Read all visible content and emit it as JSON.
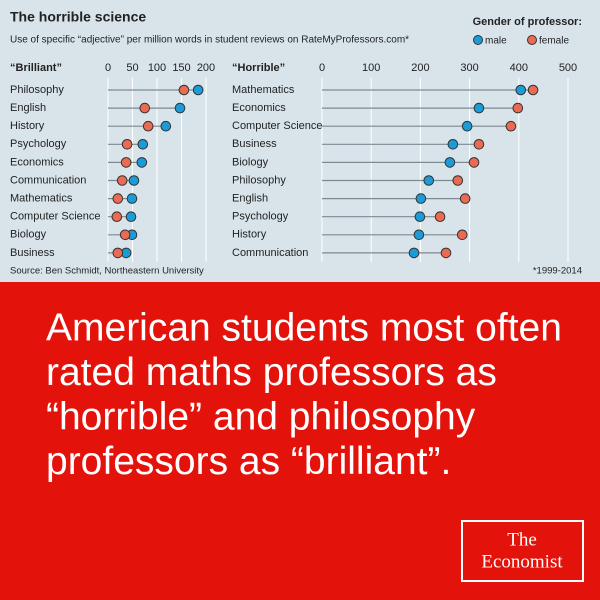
{
  "title": "The horrible science",
  "subtitle": "Use of specific “adjective” per million words in student reviews on RateMyProfessors.com*",
  "legend_title": "Gender of professor:",
  "source": "Source: Ben Schmidt, Northeastern University",
  "footnote": "*1999-2014",
  "headline_lines": [
    "American students most often",
    "rated maths professors as",
    "“horrible” and philosophy",
    "professors as “brilliant”."
  ],
  "logo": [
    "The",
    "Economist"
  ],
  "chart_data": [
    {
      "type": "dot",
      "title": "“Brilliant”",
      "categories": [
        "Philosophy",
        "English",
        "History",
        "Psychology",
        "Economics",
        "Communication",
        "Mathematics",
        "Computer Science",
        "Biology",
        "Business"
      ],
      "series": [
        {
          "name": "male",
          "color": "#1b9bd7",
          "values": [
            184,
            147,
            118,
            71,
            69,
            53,
            49,
            47,
            49,
            37
          ]
        },
        {
          "name": "female",
          "color": "#ea6a53",
          "values": [
            155,
            75,
            82,
            39,
            37,
            29,
            20,
            18,
            35,
            20
          ]
        }
      ],
      "xlim": [
        0,
        200
      ],
      "xticks": [
        0,
        50,
        100,
        150,
        200
      ],
      "grid": true
    },
    {
      "type": "dot",
      "title": "“Horrible”",
      "categories": [
        "Mathematics",
        "Economics",
        "Computer Science",
        "Business",
        "Biology",
        "Philosophy",
        "English",
        "Psychology",
        "History",
        "Communication"
      ],
      "series": [
        {
          "name": "male",
          "color": "#1b9bd7",
          "values": [
            404,
            319,
            295,
            266,
            260,
            217,
            201,
            199,
            197,
            187
          ]
        },
        {
          "name": "female",
          "color": "#ea6a53",
          "values": [
            429,
            398,
            384,
            319,
            309,
            276,
            291,
            240,
            285,
            252
          ]
        }
      ],
      "xlim": [
        0,
        500
      ],
      "xticks": [
        0,
        100,
        200,
        300,
        400,
        500
      ],
      "grid": true
    }
  ]
}
